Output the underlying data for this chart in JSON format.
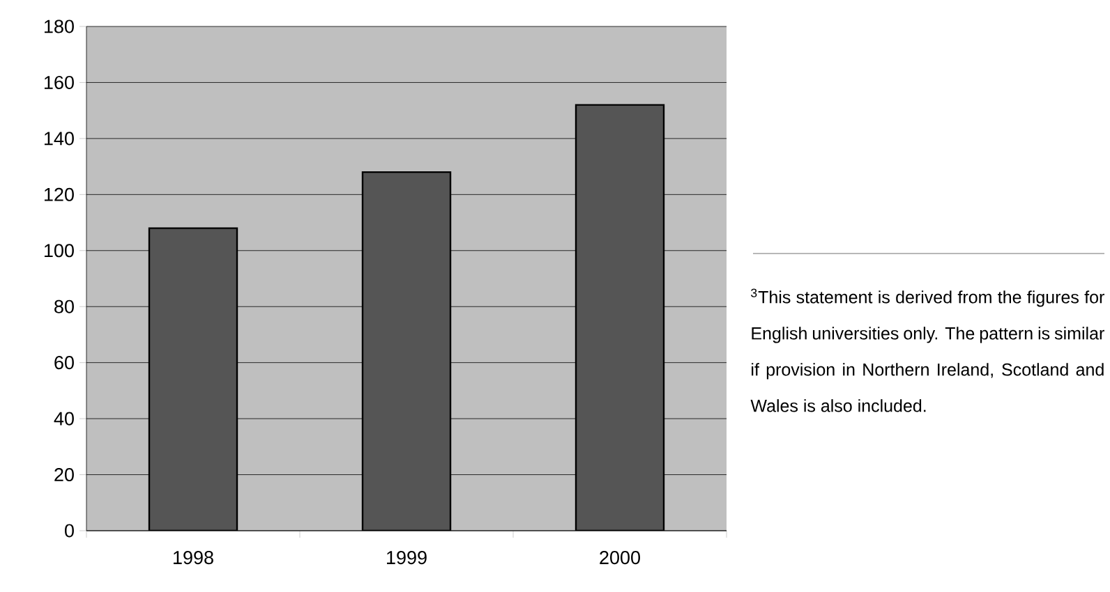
{
  "chart_data": {
    "type": "bar",
    "categories": [
      "1998",
      "1999",
      "2000"
    ],
    "values": [
      108,
      128,
      152
    ],
    "color": "#555555",
    "ylim": [
      0,
      180
    ],
    "yticks": [
      0,
      20,
      40,
      60,
      80,
      100,
      120,
      140,
      160,
      180
    ],
    "grid": "y",
    "annotations": [
      "$^{3}$This statement is derived from the figures for English universities only.  The pattern is similar if provision in Northern Ireland, Scotland and Wales is also included."
    ]
  }
}
